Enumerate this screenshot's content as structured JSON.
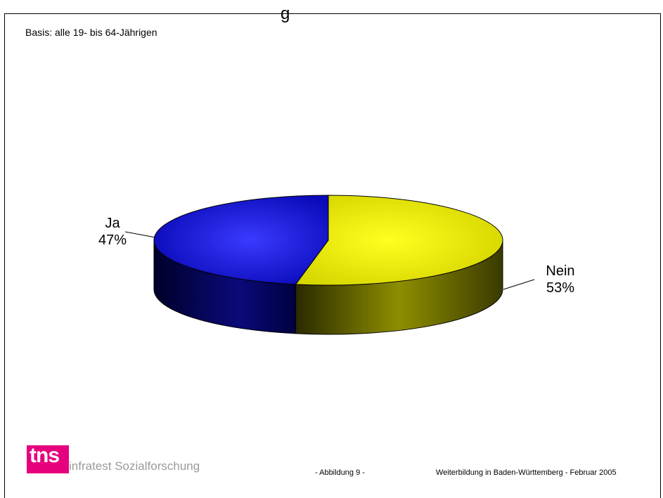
{
  "page": {
    "title_fragment": "g",
    "basis": "Basis: alle 19- bis 64-Jährigen",
    "footer_figure": "- Abbildung 9 -",
    "footer_title": "Weiterbildung in Baden-Württemberg - Februar 2005",
    "logo": {
      "mark": "tns",
      "brand": "infratest",
      "division": "Sozialforschung",
      "color": "#e6007e"
    }
  },
  "chart_data": {
    "type": "pie",
    "three_d": true,
    "categories": [
      "Ja",
      "Nein"
    ],
    "values": [
      47,
      53
    ],
    "labels": [
      "Ja\n47%",
      "Nein\n53%"
    ],
    "colors": [
      "#1212e8",
      "#f2f20a"
    ],
    "legend": "none"
  }
}
